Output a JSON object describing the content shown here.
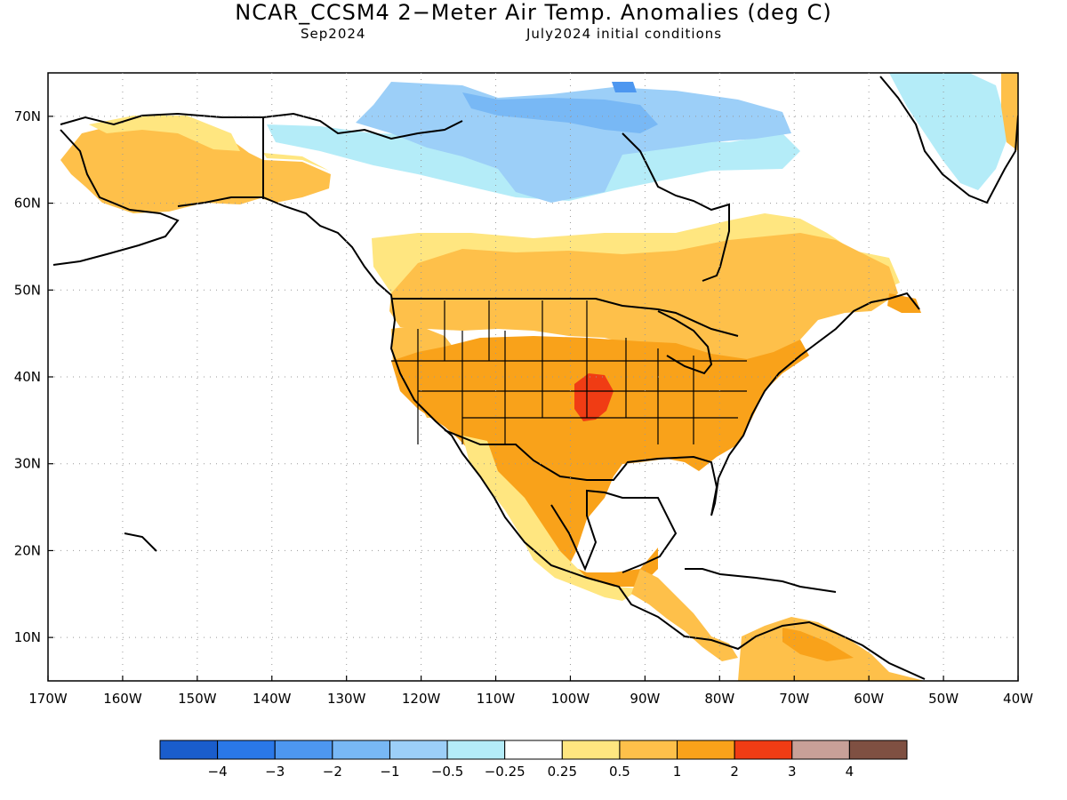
{
  "header": {
    "title": "NCAR_CCSM4 2−Meter Air Temp. Anomalies (deg C)",
    "valid_month": "Sep2024",
    "init_conditions": "July2024 initial conditions"
  },
  "map": {
    "region": "North America",
    "projection": "lat-lon",
    "lon_range": [
      -170,
      -40
    ],
    "lat_range": [
      5,
      75
    ],
    "gridlines": "dotted",
    "lat_labels": [
      "70N",
      "60N",
      "50N",
      "40N",
      "30N",
      "20N",
      "10N"
    ],
    "lon_labels": [
      "170W",
      "160W",
      "150W",
      "140W",
      "130W",
      "120W",
      "110W",
      "100W",
      "90W",
      "80W",
      "70W",
      "60W",
      "50W",
      "40W"
    ]
  },
  "colorbar": {
    "colors": [
      "#1a5dcc",
      "#2a78e8",
      "#4d97f0",
      "#78b8f5",
      "#9ccff8",
      "#b4ecf8",
      "#ffffff",
      "#ffe680",
      "#fec04a",
      "#f9a21a",
      "#f03c14",
      "#c8a098",
      "#7f5042"
    ],
    "labels": [
      "−4",
      "−3",
      "−2",
      "−1",
      "−0.5",
      "−0.25",
      "0.25",
      "0.5",
      "1",
      "2",
      "3",
      "4"
    ]
  },
  "anomaly_regions": [
    {
      "name": "Alaska",
      "category": "0.5 to 1"
    },
    {
      "name": "Canadian Arctic",
      "category": "-1 to -0.5"
    },
    {
      "name": "Southern Canada",
      "category": "0.5 to 1"
    },
    {
      "name": "Contiguous United States",
      "category": "1 to 2"
    },
    {
      "name": "Central Plains",
      "category": "2 to 3"
    },
    {
      "name": "Mexico",
      "category": "0.5 to 1"
    },
    {
      "name": "Northern South America",
      "category": "0.5 to 1"
    },
    {
      "name": "Greenland",
      "category": "-0.5 to -0.25"
    }
  ]
}
